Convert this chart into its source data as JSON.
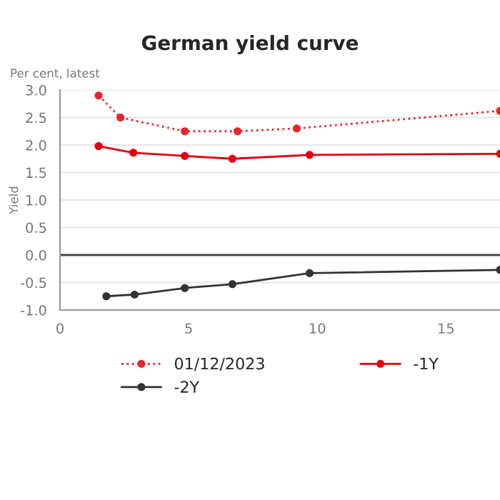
{
  "chart_data": {
    "type": "line",
    "title": "German yield curve",
    "subtitle": "Per cent, latest",
    "ylabel": "Yield",
    "xlim": [
      0,
      17.1
    ],
    "xticks": [
      0,
      5,
      10,
      15
    ],
    "ylim": [
      -1.0,
      3.0
    ],
    "yticks": [
      {
        "value": -1.0,
        "label": "-1.0"
      },
      {
        "value": -0.5,
        "label": "-0.5"
      },
      {
        "value": 0.0,
        "label": "0.0"
      },
      {
        "value": 0.5,
        "label": "0.5"
      },
      {
        "value": 1.0,
        "label": "1.0"
      },
      {
        "value": 1.5,
        "label": "1.5"
      },
      {
        "value": 2.0,
        "label": "2.0"
      },
      {
        "value": 2.5,
        "label": "2.5"
      },
      {
        "value": 3.0,
        "label": "3.0"
      }
    ],
    "grid": "y",
    "legend": "bottom",
    "marker": "circle",
    "ref_lines": [
      {
        "axis": "y",
        "value": 0,
        "color": "#444444"
      }
    ],
    "series": [
      {
        "name": "01/12/2023",
        "color": "#e8252e",
        "line_style": "dotted",
        "x": [
          1.5,
          2.35,
          4.85,
          6.9,
          9.2,
          17.1
        ],
        "values": [
          2.9,
          2.5,
          2.25,
          2.25,
          2.3,
          2.62
        ]
      },
      {
        "name": "-2Y",
        "color": "#333333",
        "line_style": "solid",
        "x": [
          1.8,
          2.9,
          4.85,
          6.7,
          9.7,
          17.1
        ],
        "values": [
          -0.75,
          -0.72,
          -0.6,
          -0.53,
          -0.33,
          -0.27
        ]
      },
      {
        "name": "-1Y",
        "color": "#e3000f",
        "line_style": "solid",
        "x": [
          1.5,
          2.85,
          4.85,
          6.7,
          9.7,
          17.1
        ],
        "values": [
          1.98,
          1.86,
          1.8,
          1.75,
          1.82,
          1.84
        ]
      }
    ]
  }
}
